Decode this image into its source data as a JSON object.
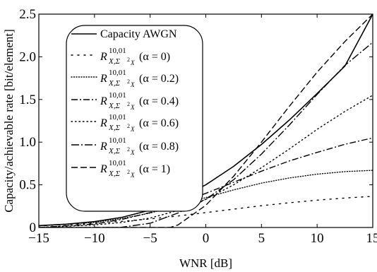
{
  "chart_data": {
    "type": "line",
    "xlabel": "WNR [dB]",
    "ylabel": "Capacity/achievable rate [bit/element]",
    "xlim": [
      -15,
      15
    ],
    "ylim": [
      0,
      2.5
    ],
    "xticks": [
      -15,
      -10,
      -5,
      0,
      5,
      10,
      15
    ],
    "yticks": [
      0,
      0.5,
      1.0,
      1.5,
      2.0,
      2.5
    ],
    "xtick_labels": [
      "−15",
      "−10",
      "−5",
      "0",
      "5",
      "10",
      "15"
    ],
    "ytick_labels": [
      "0",
      "0.5",
      "1.0",
      "1.5",
      "2.0",
      "2.5"
    ],
    "grid": false,
    "legend_position": "top-left",
    "series": [
      {
        "name": "Capacity AWGN",
        "legend_main": "Capacity AWGN",
        "legend_sup": "",
        "legend_sub": "",
        "legend_alpha": "",
        "style": "solid",
        "x": [
          -15,
          -12.5,
          -10,
          -7.5,
          -5,
          -2.5,
          0,
          2.5,
          5,
          7.5,
          10,
          12.5,
          15
        ],
        "y": [
          0.022,
          0.039,
          0.069,
          0.12,
          0.204,
          0.332,
          0.5,
          0.716,
          0.973,
          1.259,
          1.57,
          1.892,
          2.5
        ]
      },
      {
        "name": "R X,Σ²X 10,01 (α = 0)",
        "legend_main": "R",
        "legend_sup": "10,01",
        "legend_sub": "X,Σ",
        "legend_alpha": "(α = 0)",
        "style": "dotted-sparse",
        "x": [
          -15,
          -10,
          -7.5,
          -5,
          -2.5,
          0,
          2.5,
          5,
          7.5,
          10,
          12.5,
          15
        ],
        "y": [
          0.018,
          0.05,
          0.073,
          0.1,
          0.135,
          0.175,
          0.215,
          0.255,
          0.29,
          0.32,
          0.345,
          0.365
        ]
      },
      {
        "name": "R X,Σ²X 10,01 (α = 0.2)",
        "legend_main": "R",
        "legend_sup": "10,01",
        "legend_sub": "X,Σ",
        "legend_alpha": "(α = 0.2)",
        "style": "dotted-fine",
        "x": [
          -15,
          -10,
          -7.5,
          -5,
          -2.5,
          0,
          2.5,
          5,
          7.5,
          10,
          12.5,
          15
        ],
        "y": [
          0.02,
          0.06,
          0.105,
          0.17,
          0.255,
          0.35,
          0.44,
          0.52,
          0.58,
          0.625,
          0.655,
          0.67
        ]
      },
      {
        "name": "R X,Σ²X 10,01 (α = 0.4)",
        "legend_main": "R",
        "legend_sup": "10,01",
        "legend_sub": "X,Σ",
        "legend_alpha": "(α = 0.4)",
        "style": "dashdot",
        "x": [
          -15,
          -10,
          -7.5,
          -5,
          -2.5,
          0,
          2.5,
          5,
          7.5,
          10,
          12.5,
          15
        ],
        "y": [
          0.0,
          0.04,
          0.095,
          0.175,
          0.28,
          0.4,
          0.53,
          0.66,
          0.78,
          0.88,
          0.975,
          1.05
        ]
      },
      {
        "name": "R X,Σ²X 10,01 (α = 0.6)",
        "legend_main": "R",
        "legend_sup": "10,01",
        "legend_sub": "X,Σ",
        "legend_alpha": "(α = 0.6)",
        "style": "dotted-medium",
        "x": [
          -15,
          -10,
          -7.5,
          -5,
          -2.5,
          0,
          2.5,
          5,
          7.5,
          10,
          12.5,
          15
        ],
        "y": [
          0.0,
          0.03,
          0.06,
          0.11,
          0.2,
          0.33,
          0.5,
          0.7,
          0.92,
          1.15,
          1.36,
          1.55
        ]
      },
      {
        "name": "R X,Σ²X 10,01 (α = 0.8)",
        "legend_main": "R",
        "legend_sup": "10,01",
        "legend_sub": "X,Σ",
        "legend_alpha": "(α = 0.8)",
        "style": "longdashdot",
        "x": [
          -15,
          -7.7,
          -5,
          -2.5,
          0,
          2.5,
          5,
          7.5,
          10,
          12.5,
          15
        ],
        "y": [
          0.0,
          0.0,
          0.05,
          0.17,
          0.33,
          0.56,
          0.86,
          1.2,
          1.56,
          1.9,
          2.17
        ]
      },
      {
        "name": "R X,Σ²X 10,01 (α = 1)",
        "legend_main": "R",
        "legend_sup": "10,01",
        "legend_sub": "X,Σ",
        "legend_alpha": "(α = 1)",
        "style": "dashed",
        "x": [
          -15,
          -3.2,
          -2.5,
          0,
          2.5,
          5,
          7.5,
          10,
          12.5,
          15
        ],
        "y": [
          0.0,
          0.0,
          0.03,
          0.26,
          0.6,
          1.0,
          1.42,
          1.82,
          2.18,
          2.5
        ]
      }
    ]
  }
}
